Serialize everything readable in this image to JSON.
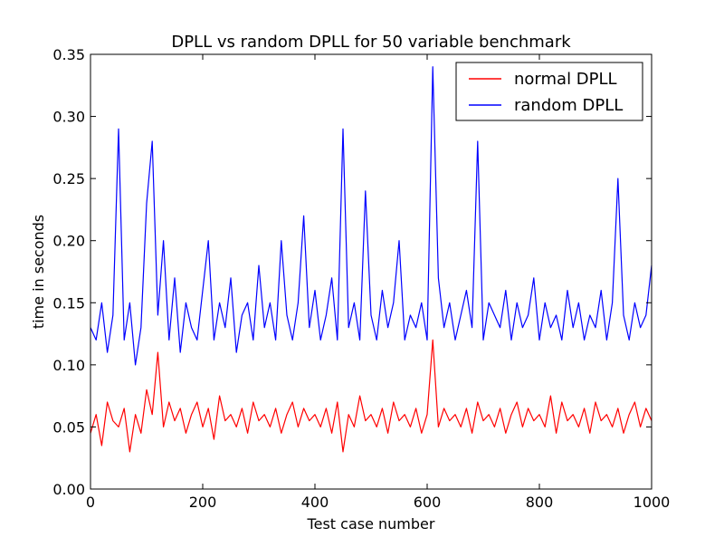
{
  "chart_data": {
    "type": "line",
    "title": "DPLL vs random DPLL for 50 variable benchmark",
    "xlabel": "Test case number",
    "ylabel": "time in seconds",
    "xlim": [
      0,
      1000
    ],
    "ylim": [
      0,
      0.35
    ],
    "xticks": [
      0,
      200,
      400,
      600,
      800,
      1000
    ],
    "xtick_labels": [
      "0",
      "200",
      "400",
      "600",
      "800",
      "1000"
    ],
    "yticks": [
      0.0,
      0.05,
      0.1,
      0.15,
      0.2,
      0.25,
      0.3,
      0.35
    ],
    "ytick_labels": [
      "0.00",
      "0.05",
      "0.10",
      "0.15",
      "0.20",
      "0.25",
      "0.30",
      "0.35"
    ],
    "grid": false,
    "legend": "top-right",
    "series": [
      {
        "name": "normal DPLL",
        "color": "#ff0000",
        "sampling": "every 10th test case (x = 0, 10, ..., 1000), estimated",
        "x": [
          0,
          10,
          20,
          30,
          40,
          50,
          60,
          70,
          80,
          90,
          100,
          110,
          120,
          130,
          140,
          150,
          160,
          170,
          180,
          190,
          200,
          210,
          220,
          230,
          240,
          250,
          260,
          270,
          280,
          290,
          300,
          310,
          320,
          330,
          340,
          350,
          360,
          370,
          380,
          390,
          400,
          410,
          420,
          430,
          440,
          450,
          460,
          470,
          480,
          490,
          500,
          510,
          520,
          530,
          540,
          550,
          560,
          570,
          580,
          590,
          600,
          610,
          620,
          630,
          640,
          650,
          660,
          670,
          680,
          690,
          700,
          710,
          720,
          730,
          740,
          750,
          760,
          770,
          780,
          790,
          800,
          810,
          820,
          830,
          840,
          850,
          860,
          870,
          880,
          890,
          900,
          910,
          920,
          930,
          940,
          950,
          960,
          970,
          980,
          990,
          1000
        ],
        "y": [
          0.045,
          0.06,
          0.035,
          0.07,
          0.055,
          0.05,
          0.065,
          0.03,
          0.06,
          0.045,
          0.08,
          0.06,
          0.11,
          0.05,
          0.07,
          0.055,
          0.065,
          0.045,
          0.06,
          0.07,
          0.05,
          0.065,
          0.04,
          0.075,
          0.055,
          0.06,
          0.05,
          0.065,
          0.045,
          0.07,
          0.055,
          0.06,
          0.05,
          0.065,
          0.045,
          0.06,
          0.07,
          0.05,
          0.065,
          0.055,
          0.06,
          0.05,
          0.065,
          0.045,
          0.07,
          0.03,
          0.06,
          0.05,
          0.075,
          0.055,
          0.06,
          0.05,
          0.065,
          0.045,
          0.07,
          0.055,
          0.06,
          0.05,
          0.065,
          0.045,
          0.06,
          0.12,
          0.05,
          0.065,
          0.055,
          0.06,
          0.05,
          0.065,
          0.045,
          0.07,
          0.055,
          0.06,
          0.05,
          0.065,
          0.045,
          0.06,
          0.07,
          0.05,
          0.065,
          0.055,
          0.06,
          0.05,
          0.075,
          0.045,
          0.07,
          0.055,
          0.06,
          0.05,
          0.065,
          0.045,
          0.07,
          0.055,
          0.06,
          0.05,
          0.065,
          0.045,
          0.06,
          0.07,
          0.05,
          0.065,
          0.055
        ]
      },
      {
        "name": "random DPLL",
        "color": "#0000ff",
        "sampling": "every 10th test case (x = 0, 10, ..., 1000), estimated",
        "x": [
          0,
          10,
          20,
          30,
          40,
          50,
          60,
          70,
          80,
          90,
          100,
          110,
          120,
          130,
          140,
          150,
          160,
          170,
          180,
          190,
          200,
          210,
          220,
          230,
          240,
          250,
          260,
          270,
          280,
          290,
          300,
          310,
          320,
          330,
          340,
          350,
          360,
          370,
          380,
          390,
          400,
          410,
          420,
          430,
          440,
          450,
          460,
          470,
          480,
          490,
          500,
          510,
          520,
          530,
          540,
          550,
          560,
          570,
          580,
          590,
          600,
          610,
          620,
          630,
          640,
          650,
          660,
          670,
          680,
          690,
          700,
          710,
          720,
          730,
          740,
          750,
          760,
          770,
          780,
          790,
          800,
          810,
          820,
          830,
          840,
          850,
          860,
          870,
          880,
          890,
          900,
          910,
          920,
          930,
          940,
          950,
          960,
          970,
          980,
          990,
          1000
        ],
        "y": [
          0.13,
          0.12,
          0.15,
          0.11,
          0.14,
          0.29,
          0.12,
          0.15,
          0.1,
          0.13,
          0.23,
          0.28,
          0.14,
          0.2,
          0.12,
          0.17,
          0.11,
          0.15,
          0.13,
          0.12,
          0.16,
          0.2,
          0.12,
          0.15,
          0.13,
          0.17,
          0.11,
          0.14,
          0.15,
          0.12,
          0.18,
          0.13,
          0.15,
          0.12,
          0.2,
          0.14,
          0.12,
          0.15,
          0.22,
          0.13,
          0.16,
          0.12,
          0.14,
          0.17,
          0.12,
          0.29,
          0.13,
          0.15,
          0.12,
          0.24,
          0.14,
          0.12,
          0.16,
          0.13,
          0.15,
          0.2,
          0.12,
          0.14,
          0.13,
          0.15,
          0.12,
          0.34,
          0.17,
          0.13,
          0.15,
          0.12,
          0.14,
          0.16,
          0.13,
          0.28,
          0.12,
          0.15,
          0.14,
          0.13,
          0.16,
          0.12,
          0.15,
          0.13,
          0.14,
          0.17,
          0.12,
          0.15,
          0.13,
          0.14,
          0.12,
          0.16,
          0.13,
          0.15,
          0.12,
          0.14,
          0.13,
          0.16,
          0.12,
          0.15,
          0.25,
          0.14,
          0.12,
          0.15,
          0.13,
          0.14,
          0.18
        ]
      }
    ]
  }
}
